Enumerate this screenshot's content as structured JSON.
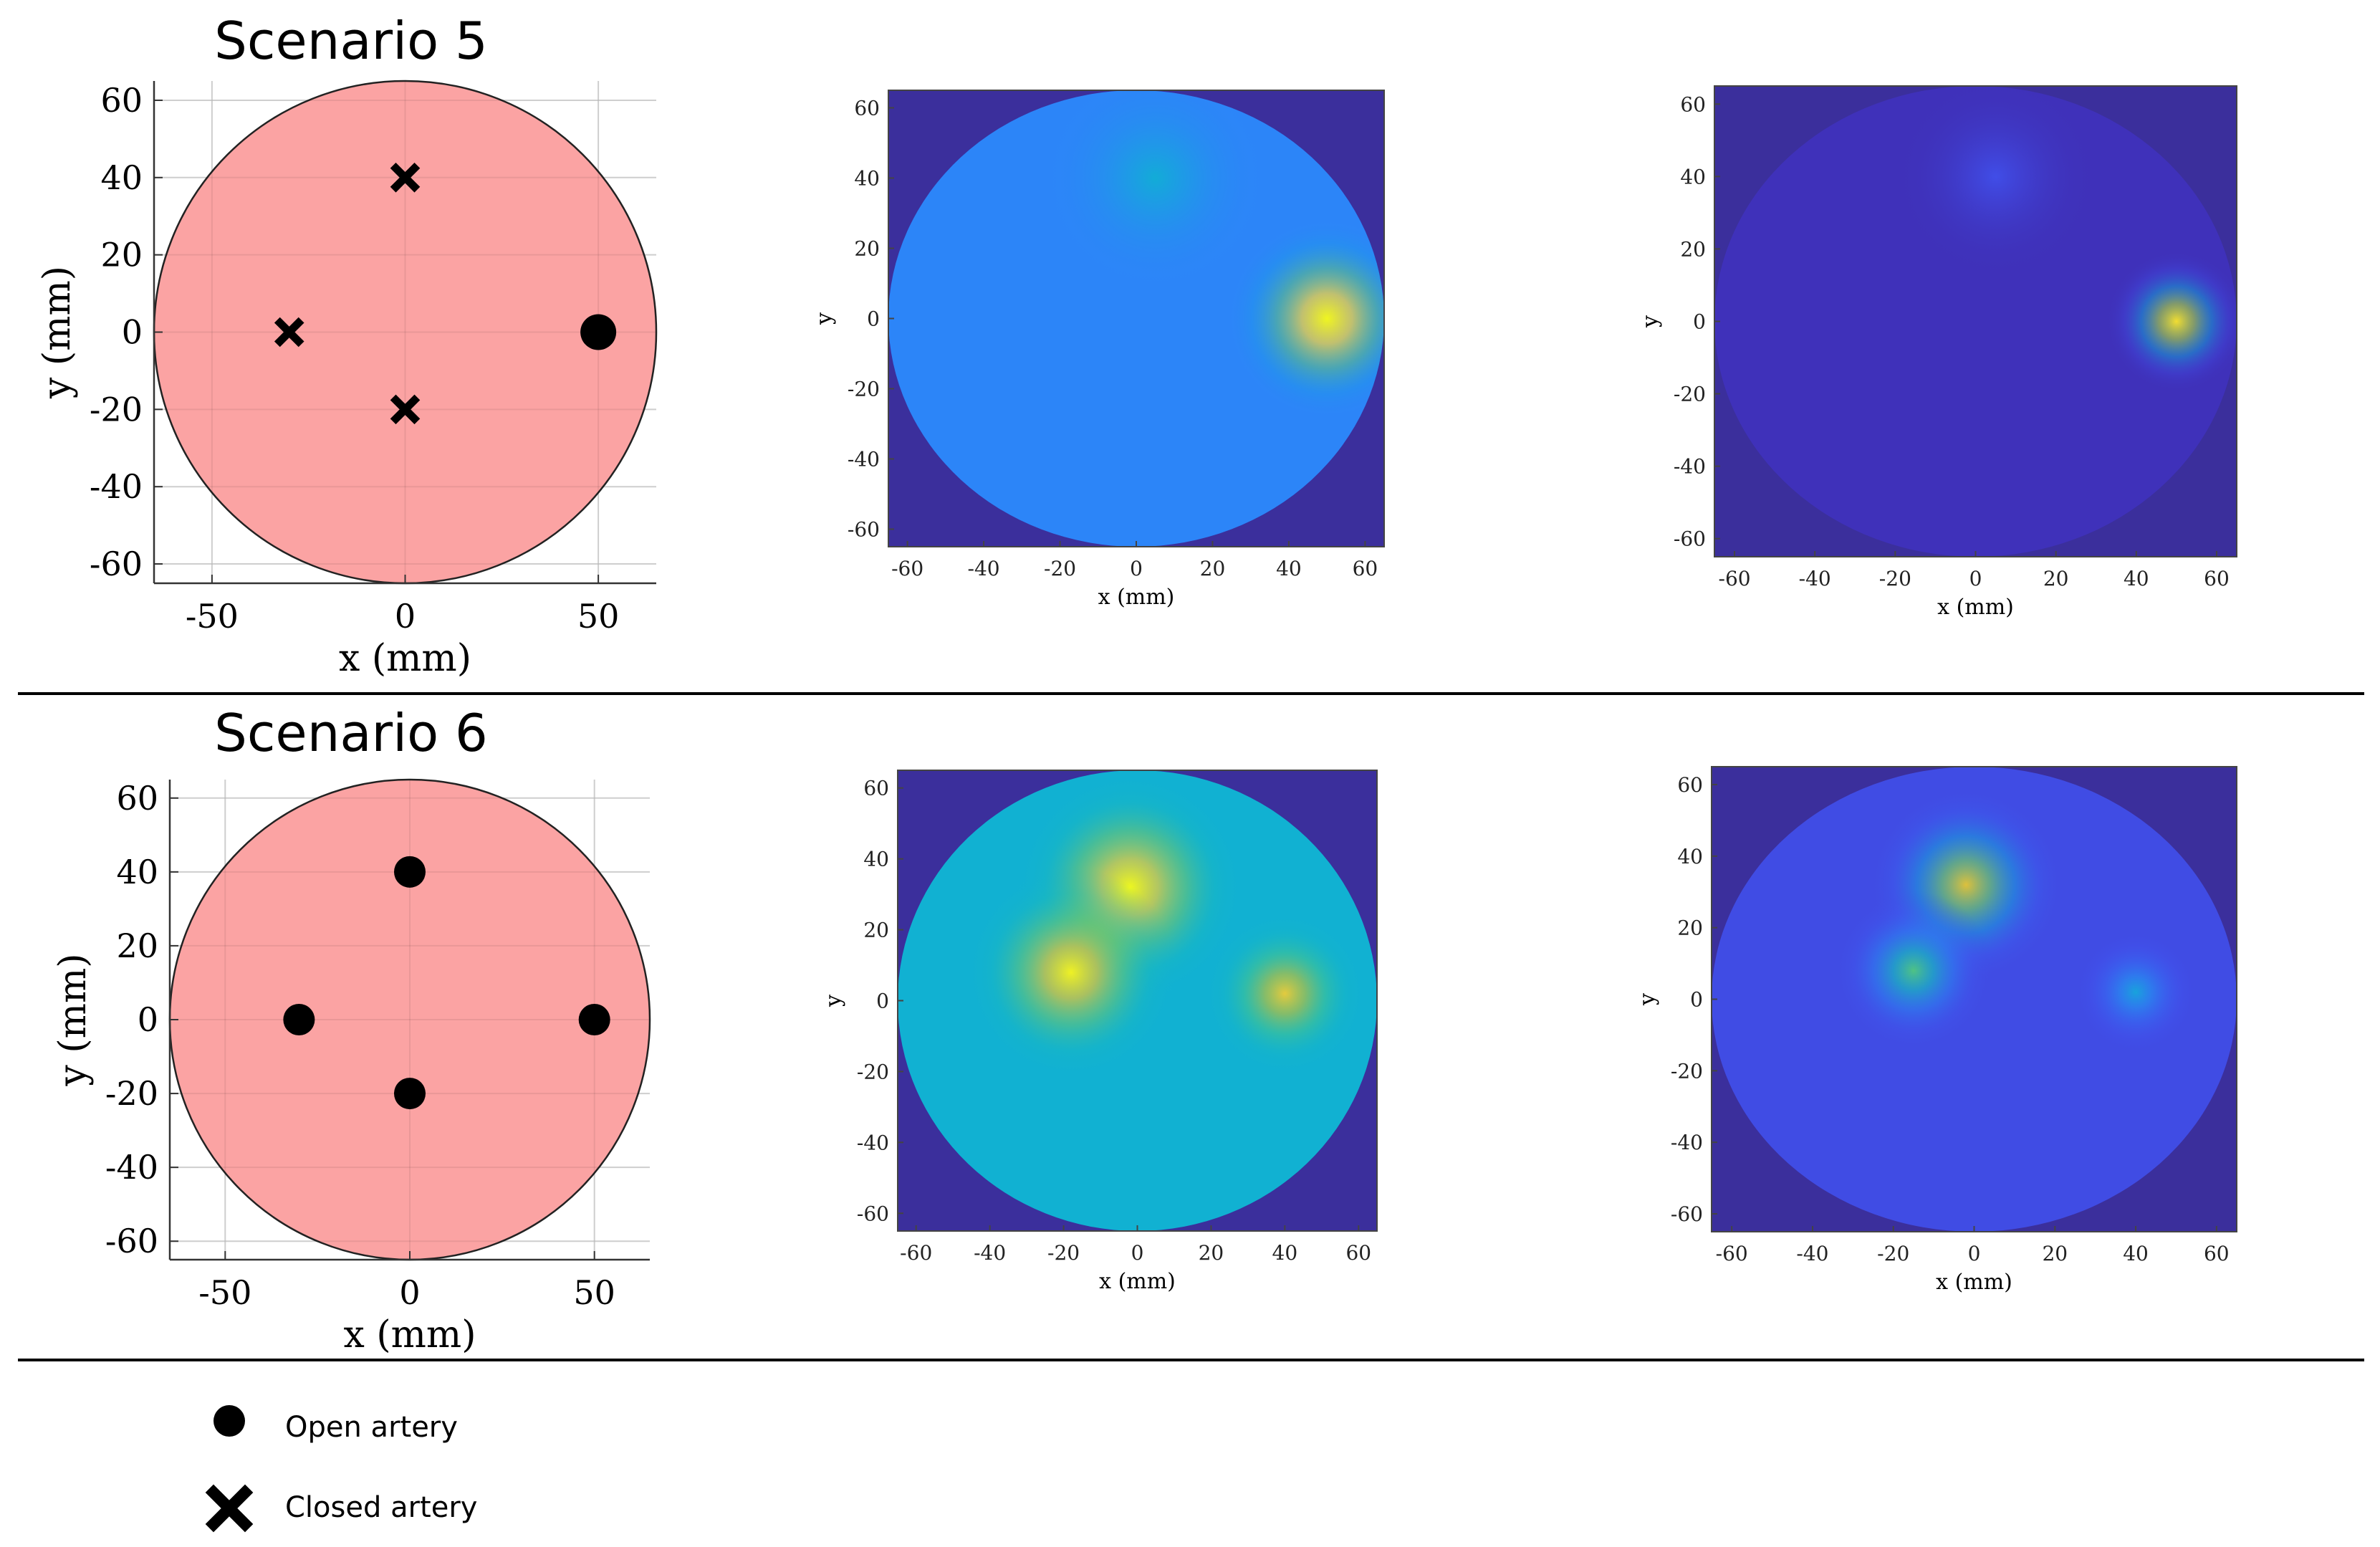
{
  "colors": {
    "disk_fill": "#fba3a3",
    "marker": "#000000",
    "map_background": "#3b2f9c",
    "divider": "#000000",
    "colormap": [
      "#3e26a8",
      "#4155f3",
      "#2c85f8",
      "#10b0d4",
      "#2cc69a",
      "#85ca57",
      "#d6bb2e",
      "#fdd63a",
      "#f9fb15"
    ]
  },
  "scenarios": [
    {
      "title": "Scenario 5",
      "layout_chart": {
        "xlabel": "x (mm)",
        "ylabel": "y (mm)",
        "xticks": [
          "-50",
          "0",
          "50"
        ],
        "yticks": [
          "60",
          "40",
          "20",
          "0",
          "-20",
          "-40",
          "-60"
        ]
      },
      "map_a": {
        "xlabel": "x (mm)",
        "ylabel": "y",
        "xticks": [
          "-60",
          "-40",
          "-20",
          "0",
          "20",
          "40",
          "60"
        ],
        "yticks": [
          "60",
          "40",
          "20",
          "0",
          "-20",
          "-40",
          "-60"
        ]
      },
      "map_b": {
        "xlabel": "x (mm)",
        "ylabel": "y",
        "xticks": [
          "-60",
          "-40",
          "-20",
          "0",
          "20",
          "40",
          "60"
        ],
        "yticks": [
          "60",
          "40",
          "20",
          "0",
          "-20",
          "-40",
          "-60"
        ]
      }
    },
    {
      "title": "Scenario 6",
      "layout_chart": {
        "xlabel": "x (mm)",
        "ylabel": "y (mm)",
        "xticks": [
          "-50",
          "0",
          "50"
        ],
        "yticks": [
          "60",
          "40",
          "20",
          "0",
          "-20",
          "-40",
          "-60"
        ]
      },
      "map_a": {
        "xlabel": "x (mm)",
        "ylabel": "y",
        "xticks": [
          "-60",
          "-40",
          "-20",
          "0",
          "20",
          "40",
          "60"
        ],
        "yticks": [
          "60",
          "40",
          "20",
          "0",
          "-20",
          "-40",
          "-60"
        ]
      },
      "map_b": {
        "xlabel": "x (mm)",
        "ylabel": "y",
        "xticks": [
          "-60",
          "-40",
          "-20",
          "0",
          "20",
          "40",
          "60"
        ],
        "yticks": [
          "60",
          "40",
          "20",
          "0",
          "-20",
          "-40",
          "-60"
        ]
      }
    }
  ],
  "legend": {
    "open_label": "Open artery",
    "closed_label": "Closed artery"
  },
  "chart_data": [
    {
      "type": "scatter",
      "title": "Scenario 5",
      "xlabel": "x (mm)",
      "ylabel": "y (mm)",
      "xlim": [
        -65,
        65
      ],
      "ylim": [
        -65,
        65
      ],
      "disk_radius": 65,
      "grid": true,
      "series": [
        {
          "name": "Open artery",
          "x": [
            50
          ],
          "y": [
            0
          ]
        },
        {
          "name": "Closed artery",
          "x": [
            -30,
            0,
            0
          ],
          "y": [
            0,
            40,
            -20
          ]
        }
      ]
    },
    {
      "type": "heatmap",
      "xlabel": "x (mm)",
      "ylabel": "y",
      "xlim": [
        -65,
        65
      ],
      "ylim": [
        -65,
        65
      ],
      "hotspots": [
        {
          "x": 50,
          "y": 0,
          "intensity": 0.9,
          "spread": 12
        },
        {
          "x": 5,
          "y": 40,
          "intensity": 0.12,
          "spread": 14
        }
      ],
      "baseline": 0.25
    },
    {
      "type": "heatmap",
      "xlabel": "x (mm)",
      "ylabel": "y",
      "xlim": [
        -65,
        65
      ],
      "ylim": [
        -65,
        65
      ],
      "hotspots": [
        {
          "x": 50,
          "y": 0,
          "intensity": 0.9,
          "spread": 8
        },
        {
          "x": 5,
          "y": 40,
          "intensity": 0.08,
          "spread": 12
        }
      ],
      "baseline": 0.03
    },
    {
      "type": "scatter",
      "title": "Scenario 6",
      "xlabel": "x (mm)",
      "ylabel": "y (mm)",
      "xlim": [
        -65,
        65
      ],
      "ylim": [
        -65,
        65
      ],
      "disk_radius": 65,
      "grid": true,
      "series": [
        {
          "name": "Open artery",
          "x": [
            0,
            -30,
            50,
            0
          ],
          "y": [
            40,
            0,
            0,
            -20
          ]
        },
        {
          "name": "Closed artery",
          "x": [],
          "y": []
        }
      ]
    },
    {
      "type": "heatmap",
      "xlabel": "x (mm)",
      "ylabel": "y",
      "xlim": [
        -65,
        65
      ],
      "ylim": [
        -65,
        65
      ],
      "hotspots": [
        {
          "x": -2,
          "y": 32,
          "intensity": 0.65,
          "spread": 14
        },
        {
          "x": -18,
          "y": 8,
          "intensity": 0.6,
          "spread": 13
        },
        {
          "x": 40,
          "y": 2,
          "intensity": 0.45,
          "spread": 10
        }
      ],
      "baseline": 0.38
    },
    {
      "type": "heatmap",
      "xlabel": "x (mm)",
      "ylabel": "y",
      "xlim": [
        -65,
        65
      ],
      "ylim": [
        -65,
        65
      ],
      "hotspots": [
        {
          "x": -2,
          "y": 32,
          "intensity": 0.7,
          "spread": 11
        },
        {
          "x": -15,
          "y": 8,
          "intensity": 0.45,
          "spread": 9
        },
        {
          "x": 40,
          "y": 2,
          "intensity": 0.25,
          "spread": 7
        }
      ],
      "baseline": 0.1
    }
  ]
}
